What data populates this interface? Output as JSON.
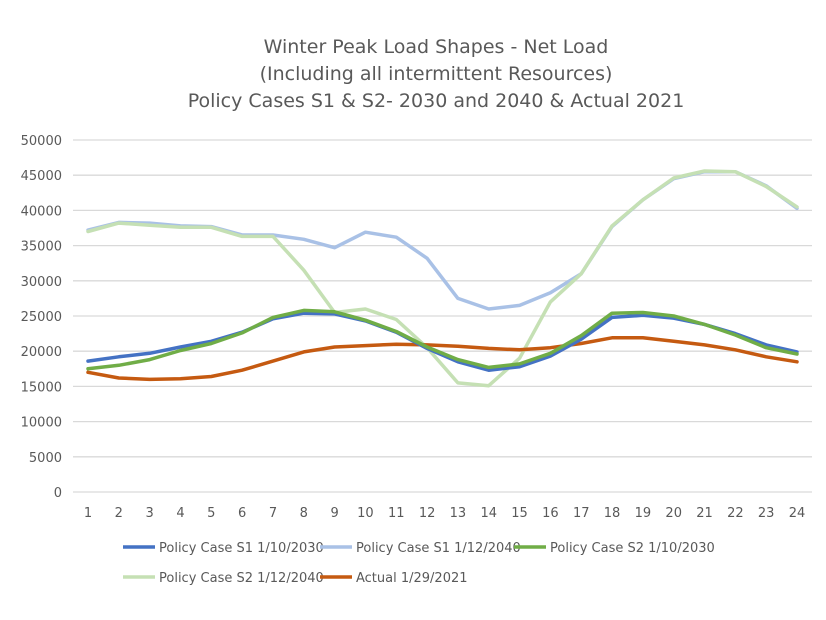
{
  "chart_data": {
    "type": "line",
    "title": [
      "Winter Peak Load Shapes - Net Load",
      "(Including all intermittent Resources)",
      "Policy Cases S1 & S2- 2030 and 2040 & Actual 2021"
    ],
    "xlabel": "",
    "ylabel": "",
    "x": [
      1,
      2,
      3,
      4,
      5,
      6,
      7,
      8,
      9,
      10,
      11,
      12,
      13,
      14,
      15,
      16,
      17,
      18,
      19,
      20,
      21,
      22,
      23,
      24
    ],
    "ylim": [
      0,
      50000
    ],
    "yticks": [
      0,
      5000,
      10000,
      15000,
      20000,
      25000,
      30000,
      35000,
      40000,
      45000,
      50000
    ],
    "grid": true,
    "legend_position": "bottom",
    "series": [
      {
        "name": "Policy Case S1 1/12/2040",
        "color": "#a9c1e6",
        "values": [
          37200,
          38300,
          38200,
          37800,
          37700,
          36500,
          36500,
          35900,
          34700,
          36900,
          36200,
          33200,
          27500,
          26000,
          26500,
          28300,
          31000,
          37700,
          41500,
          44500,
          45500,
          45500,
          43500,
          40300
        ]
      },
      {
        "name": "Policy Case S2 1/12/2040",
        "color": "#c5e0b4",
        "values": [
          37000,
          38200,
          37900,
          37600,
          37600,
          36300,
          36300,
          31500,
          25500,
          26000,
          24500,
          20500,
          15500,
          15100,
          19000,
          27000,
          31000,
          37800,
          41500,
          44600,
          45600,
          45500,
          43400,
          40500
        ]
      },
      {
        "name": "Actual 1/29/2021",
        "color": "#c55a11",
        "values": [
          17000,
          16200,
          16000,
          16100,
          16400,
          17300,
          18600,
          19900,
          20600,
          20800,
          21000,
          20900,
          20700,
          20400,
          20200,
          20500,
          21100,
          21900,
          21900,
          21400,
          20900,
          20200,
          19200,
          18500
        ]
      },
      {
        "name": "Policy Case S1 1/10/2030",
        "color": "#4472c4",
        "values": [
          18600,
          19200,
          19700,
          20600,
          21400,
          22700,
          24600,
          25400,
          25300,
          24300,
          22700,
          20400,
          18500,
          17300,
          17800,
          19300,
          21700,
          24800,
          25100,
          24700,
          23800,
          22500,
          20900,
          19900
        ]
      },
      {
        "name": "Policy Case S2 1/10/2030",
        "color": "#70ad47",
        "values": [
          17500,
          18000,
          18800,
          20100,
          21100,
          22600,
          24800,
          25800,
          25600,
          24400,
          22800,
          20600,
          18800,
          17700,
          18200,
          19700,
          22200,
          25400,
          25500,
          25000,
          23800,
          22300,
          20500,
          19600
        ]
      }
    ],
    "legend_order": [
      "Policy Case S1 1/10/2030",
      "Policy Case S1 1/12/2040",
      "Policy Case S2 1/10/2030",
      "Policy Case S2 1/12/2040",
      "Actual 1/29/2021"
    ]
  }
}
